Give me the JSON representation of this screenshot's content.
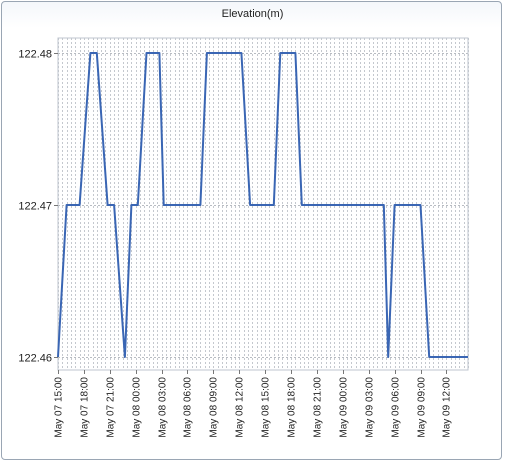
{
  "chart_data": {
    "type": "line",
    "title": "Elevation(m)",
    "xlabel": "",
    "ylabel": "",
    "ylim": [
      122.46,
      122.48
    ],
    "yticks": [
      "122.48",
      "122.47",
      "122.46"
    ],
    "x_start": "May 07 15:00",
    "x_end": "May 09 14:30",
    "x_ticks": [
      "May 07 15:00",
      "May 07 18:00",
      "May 07 21:00",
      "May 08 00:00",
      "May 08 03:00",
      "May 08 06:00",
      "May 08 09:00",
      "May 08 12:00",
      "May 08 15:00",
      "May 08 18:00",
      "May 08 21:00",
      "May 09 00:00",
      "May 09 03:00",
      "May 09 06:00",
      "May 09 09:00",
      "May 09 12:00"
    ],
    "grid": true,
    "line_color": "#3a66b4",
    "series": [
      {
        "x": [
          "May 07 15:00",
          "May 07 16:00",
          "May 07 17:30",
          "May 07 18:45",
          "May 07 19:30",
          "May 07 20:45",
          "May 07 21:30",
          "May 07 22:45",
          "May 07 23:30",
          "May 08 00:15",
          "May 08 01:15",
          "May 08 02:45",
          "May 08 03:15",
          "May 08 04:45",
          "May 08 05:15",
          "May 08 07:30",
          "May 08 08:15",
          "May 08 09:00",
          "May 08 12:15",
          "May 08 13:15",
          "May 08 16:00",
          "May 08 16:45",
          "May 08 18:30",
          "May 08 19:15",
          "May 08 20:15",
          "May 08 21:00",
          "May 09 04:45",
          "May 09 05:15",
          "May 09 06:00",
          "May 09 09:00",
          "May 09 10:00",
          "May 09 14:30"
        ],
        "values": [
          122.46,
          122.47,
          122.47,
          122.48,
          122.48,
          122.47,
          122.47,
          122.46,
          122.47,
          122.47,
          122.48,
          122.48,
          122.47,
          122.47,
          122.47,
          122.47,
          122.48,
          122.48,
          122.48,
          122.47,
          122.47,
          122.48,
          122.48,
          122.47,
          122.47,
          122.47,
          122.47,
          122.46,
          122.47,
          122.47,
          122.46,
          122.46
        ]
      }
    ]
  }
}
